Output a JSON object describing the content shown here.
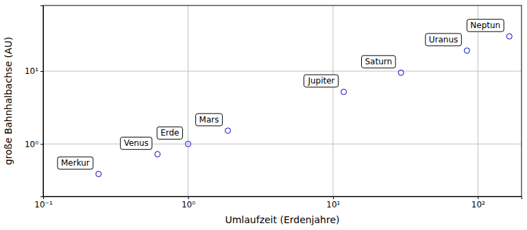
{
  "chart_data": {
    "type": "scatter",
    "x_label": "Umlaufzeit (Erdenjahre)",
    "y_label": "große Bahnhalbachse (AU)",
    "labels": [
      "Merkur",
      "Venus",
      "Erde",
      "Mars",
      "Jupiter",
      "Saturn",
      "Uranus",
      "Neptun"
    ],
    "x": [
      0.241,
      0.615,
      1.0,
      1.881,
      11.86,
      29.46,
      84.01,
      164.8
    ],
    "values": [
      0.387,
      0.723,
      1.0,
      1.524,
      5.203,
      9.537,
      19.19,
      30.07
    ],
    "color": "#0000cc",
    "marker": "open-circle",
    "log": true,
    "grid": true,
    "xlim": [
      0.1,
      200
    ],
    "ylim": [
      0.19,
      80
    ],
    "xticks": [
      {
        "value": 0.1,
        "label": "10⁻¹"
      },
      {
        "value": 1,
        "label": "10⁰"
      },
      {
        "value": 10,
        "label": "10¹"
      },
      {
        "value": 100,
        "label": "10²"
      }
    ],
    "yticks": [
      {
        "value": 1,
        "label": "10⁰"
      },
      {
        "value": 10,
        "label": "10¹"
      }
    ]
  }
}
